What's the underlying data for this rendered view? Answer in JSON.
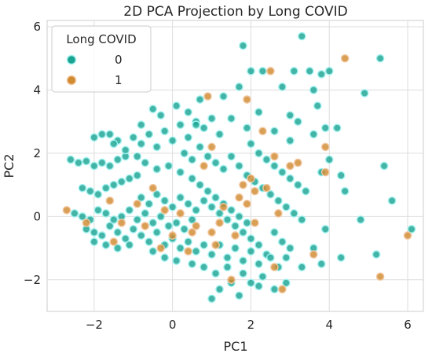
{
  "chart_data": {
    "type": "scatter",
    "title": "2D PCA Projection by Long COVID",
    "xlabel": "PC1",
    "ylabel": "PC2",
    "xlim": [
      -3.2,
      6.4
    ],
    "ylim": [
      -3.0,
      6.2
    ],
    "xticks": [
      -2,
      0,
      2,
      4,
      6
    ],
    "yticks": [
      -2,
      0,
      2,
      4,
      6
    ],
    "grid": true,
    "legend": {
      "title": "Long COVID",
      "placement": "top-left"
    },
    "series": [
      {
        "name": "0",
        "color": "#1aa391",
        "points": [
          [
            -2.6,
            1.8
          ],
          [
            -2.4,
            1.7
          ],
          [
            -2.2,
            1.75
          ],
          [
            -2.0,
            1.6
          ],
          [
            -1.8,
            1.7
          ],
          [
            -1.6,
            1.6
          ],
          [
            -1.4,
            1.8
          ],
          [
            -1.2,
            1.9
          ],
          [
            -2.3,
            0.9
          ],
          [
            -2.1,
            0.8
          ],
          [
            -1.9,
            0.7
          ],
          [
            -1.7,
            0.9
          ],
          [
            -1.5,
            1.0
          ],
          [
            -1.3,
            1.1
          ],
          [
            -1.1,
            1.2
          ],
          [
            -0.9,
            1.3
          ],
          [
            -2.5,
            0.1
          ],
          [
            -2.3,
            0.0
          ],
          [
            -2.1,
            -0.1
          ],
          [
            -1.9,
            0.2
          ],
          [
            -1.7,
            0.1
          ],
          [
            -1.5,
            -0.1
          ],
          [
            -1.3,
            0.0
          ],
          [
            -1.1,
            0.2
          ],
          [
            -0.9,
            -0.1
          ],
          [
            -0.7,
            0.1
          ],
          [
            -0.5,
            -0.2
          ],
          [
            -0.3,
            0.0
          ],
          [
            -0.1,
            -0.3
          ],
          [
            0.1,
            -0.2
          ],
          [
            0.3,
            -0.4
          ],
          [
            0.5,
            -0.1
          ],
          [
            -2.2,
            -0.4
          ],
          [
            -2.0,
            -0.5
          ],
          [
            -1.8,
            -0.6
          ],
          [
            -1.6,
            -0.3
          ],
          [
            -1.4,
            -0.5
          ],
          [
            -1.2,
            -0.7
          ],
          [
            -1.0,
            -0.4
          ],
          [
            -0.8,
            -0.6
          ],
          [
            -0.6,
            -0.8
          ],
          [
            -0.4,
            -0.5
          ],
          [
            -0.2,
            -0.9
          ],
          [
            0.0,
            -0.7
          ],
          [
            0.2,
            -1.0
          ],
          [
            0.4,
            -0.8
          ],
          [
            0.6,
            -1.1
          ],
          [
            0.8,
            -0.9
          ],
          [
            1.0,
            -1.2
          ],
          [
            1.2,
            -0.9
          ],
          [
            1.4,
            -1.3
          ],
          [
            1.6,
            -1.0
          ],
          [
            1.8,
            -1.4
          ],
          [
            2.0,
            -1.1
          ],
          [
            2.2,
            -1.5
          ],
          [
            2.4,
            -1.2
          ],
          [
            -1.0,
            2.5
          ],
          [
            -0.8,
            2.3
          ],
          [
            -0.6,
            2.6
          ],
          [
            -0.4,
            2.2
          ],
          [
            -0.2,
            2.7
          ],
          [
            0.0,
            2.4
          ],
          [
            0.2,
            2.9
          ],
          [
            0.4,
            2.5
          ],
          [
            -0.5,
            3.4
          ],
          [
            -0.3,
            3.2
          ],
          [
            0.1,
            3.5
          ],
          [
            0.4,
            3.3
          ],
          [
            0.6,
            3.0
          ],
          [
            0.8,
            2.8
          ],
          [
            1.0,
            3.1
          ],
          [
            1.2,
            2.6
          ],
          [
            -1.6,
            2.6
          ],
          [
            -1.4,
            2.4
          ],
          [
            -1.2,
            2.1
          ],
          [
            -0.9,
            1.9
          ],
          [
            -0.7,
            1.7
          ],
          [
            -0.4,
            1.5
          ],
          [
            -0.1,
            1.6
          ],
          [
            0.2,
            1.4
          ],
          [
            0.5,
            1.2
          ],
          [
            0.7,
            1.0
          ],
          [
            0.9,
            0.8
          ],
          [
            1.1,
            0.6
          ],
          [
            1.3,
            0.4
          ],
          [
            1.5,
            0.2
          ],
          [
            1.7,
            0.0
          ],
          [
            1.9,
            -0.2
          ],
          [
            -0.8,
            0.6
          ],
          [
            -0.6,
            0.4
          ],
          [
            -0.4,
            0.7
          ],
          [
            -0.2,
            0.5
          ],
          [
            0.0,
            0.3
          ],
          [
            0.2,
            0.6
          ],
          [
            0.4,
            0.4
          ],
          [
            0.6,
            0.2
          ],
          [
            0.8,
            0.5
          ],
          [
            1.0,
            0.3
          ],
          [
            1.2,
            0.1
          ],
          [
            1.4,
            -0.1
          ],
          [
            1.6,
            -0.3
          ],
          [
            1.8,
            -0.5
          ],
          [
            2.0,
            -0.7
          ],
          [
            2.2,
            -0.9
          ],
          [
            0.3,
            2.0
          ],
          [
            0.5,
            1.8
          ],
          [
            0.7,
            2.2
          ],
          [
            0.9,
            1.9
          ],
          [
            1.1,
            1.7
          ],
          [
            1.3,
            1.5
          ],
          [
            1.5,
            1.9
          ],
          [
            1.7,
            1.6
          ],
          [
            1.9,
            1.3
          ],
          [
            2.1,
            1.1
          ],
          [
            2.3,
            0.9
          ],
          [
            2.5,
            0.7
          ],
          [
            2.7,
            0.5
          ],
          [
            2.9,
            0.3
          ],
          [
            3.1,
            0.1
          ],
          [
            3.3,
            -0.1
          ],
          [
            2.0,
            2.3
          ],
          [
            2.2,
            2.0
          ],
          [
            2.4,
            1.8
          ],
          [
            2.6,
            1.6
          ],
          [
            2.8,
            1.4
          ],
          [
            3.0,
            1.2
          ],
          [
            3.2,
            1.0
          ],
          [
            3.4,
            0.8
          ],
          [
            2.6,
            -0.5
          ],
          [
            2.8,
            -0.8
          ],
          [
            3.0,
            -1.0
          ],
          [
            2.5,
            -1.3
          ],
          [
            2.7,
            -1.6
          ],
          [
            2.3,
            -1.9
          ],
          [
            2.0,
            -2.1
          ],
          [
            1.8,
            -1.8
          ],
          [
            1.5,
            -2.1
          ],
          [
            1.2,
            -2.3
          ],
          [
            1.0,
            -2.6
          ],
          [
            1.7,
            -2.5
          ],
          [
            2.9,
            -2.1
          ],
          [
            3.3,
            -1.6
          ],
          [
            3.6,
            -1.0
          ],
          [
            3.9,
            -0.4
          ],
          [
            1.8,
            5.4
          ],
          [
            3.3,
            5.7
          ],
          [
            2.0,
            4.6
          ],
          [
            2.3,
            4.6
          ],
          [
            3.1,
            4.6
          ],
          [
            3.5,
            4.6
          ],
          [
            3.8,
            4.5
          ],
          [
            4.0,
            4.6
          ],
          [
            2.8,
            4.1
          ],
          [
            3.6,
            4.0
          ],
          [
            1.7,
            4.1
          ],
          [
            1.5,
            3.1
          ],
          [
            2.2,
            3.3
          ],
          [
            3.0,
            3.2
          ],
          [
            3.7,
            3.5
          ],
          [
            3.2,
            3.0
          ],
          [
            3.9,
            2.8
          ],
          [
            4.2,
            2.8
          ],
          [
            3.6,
            2.6
          ],
          [
            3.0,
            2.4
          ],
          [
            2.6,
            2.7
          ],
          [
            4.0,
            1.8
          ],
          [
            3.8,
            1.4
          ],
          [
            4.3,
            1.3
          ],
          [
            4.4,
            0.8
          ],
          [
            4.9,
            3.9
          ],
          [
            5.4,
            1.6
          ],
          [
            5.6,
            0.5
          ],
          [
            5.3,
            5.0
          ],
          [
            4.8,
            -0.1
          ],
          [
            5.2,
            -1.2
          ],
          [
            4.3,
            -1.3
          ],
          [
            3.8,
            -1.5
          ],
          [
            2.9,
            -1.3
          ],
          [
            2.2,
            -2.2
          ],
          [
            2.6,
            -2.3
          ],
          [
            -0.5,
            -1.1
          ],
          [
            -0.2,
            -1.3
          ],
          [
            0.1,
            -1.4
          ],
          [
            0.5,
            -1.5
          ],
          [
            0.8,
            -1.6
          ],
          [
            -1.1,
            -0.9
          ],
          [
            -1.4,
            -1.0
          ],
          [
            -1.7,
            -0.9
          ],
          [
            -2.0,
            -0.8
          ],
          [
            6.1,
            -0.4
          ],
          [
            1.1,
            -1.8
          ],
          [
            1.4,
            -1.6
          ],
          [
            -1.8,
            2.6
          ],
          [
            -2.0,
            2.5
          ],
          [
            -1.5,
            2.3
          ],
          [
            0.7,
            3.7
          ],
          [
            1.3,
            3.8
          ],
          [
            0.6,
            2.9
          ],
          [
            -0.8,
            2.9
          ],
          [
            1.9,
            2.8
          ]
        ]
      },
      {
        "name": "1",
        "color": "#d08a30",
        "points": [
          [
            -2.7,
            0.2
          ],
          [
            -2.2,
            -0.2
          ],
          [
            -1.6,
            0.5
          ],
          [
            -1.3,
            -0.2
          ],
          [
            -0.9,
            0.4
          ],
          [
            -0.5,
            0.9
          ],
          [
            -0.2,
            0.2
          ],
          [
            0.2,
            0.1
          ],
          [
            0.6,
            -0.3
          ],
          [
            1.0,
            -0.5
          ],
          [
            1.3,
            0.3
          ],
          [
            1.6,
            -0.6
          ],
          [
            1.9,
            0.4
          ],
          [
            2.1,
            -0.2
          ],
          [
            2.4,
            0.9
          ],
          [
            2.7,
            0.1
          ],
          [
            0.9,
            3.8
          ],
          [
            1.0,
            2.2
          ],
          [
            1.9,
            3.7
          ],
          [
            2.3,
            2.7
          ],
          [
            3.0,
            1.6
          ],
          [
            3.2,
            1.7
          ],
          [
            3.9,
            1.4
          ],
          [
            4.4,
            5.0
          ],
          [
            2.5,
            4.6
          ],
          [
            3.9,
            2.2
          ],
          [
            1.8,
            1.0
          ],
          [
            1.1,
            -0.9
          ],
          [
            0.4,
            -1.1
          ],
          [
            0.0,
            -0.6
          ],
          [
            -0.7,
            -0.3
          ],
          [
            2.1,
            0.8
          ],
          [
            1.5,
            -2.0
          ],
          [
            2.6,
            -1.6
          ],
          [
            2.8,
            -2.3
          ],
          [
            3.6,
            -1.2
          ],
          [
            5.3,
            -1.9
          ],
          [
            6.0,
            -0.6
          ],
          [
            0.5,
            -0.5
          ],
          [
            1.7,
            0.6
          ],
          [
            2.6,
            1.9
          ],
          [
            0.8,
            1.6
          ],
          [
            -0.3,
            -1.0
          ],
          [
            -1.5,
            -0.8
          ],
          [
            1.2,
            -0.2
          ],
          [
            2.0,
            1.2
          ]
        ]
      }
    ]
  }
}
